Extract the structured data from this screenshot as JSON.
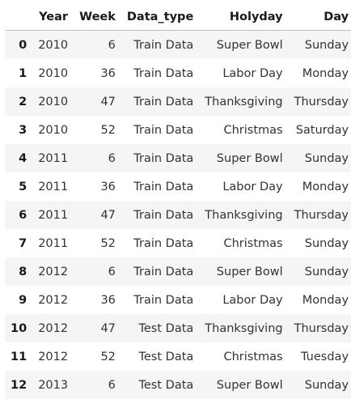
{
  "table": {
    "columns": [
      "",
      "Year",
      "Week",
      "Data_type",
      "Holyday",
      "Day"
    ],
    "rows": [
      {
        "index": "0",
        "Year": "2010",
        "Week": "6",
        "Data_type": "Train Data",
        "Holyday": "Super Bowl",
        "Day": "Sunday"
      },
      {
        "index": "1",
        "Year": "2010",
        "Week": "36",
        "Data_type": "Train Data",
        "Holyday": "Labor Day",
        "Day": "Monday"
      },
      {
        "index": "2",
        "Year": "2010",
        "Week": "47",
        "Data_type": "Train Data",
        "Holyday": "Thanksgiving",
        "Day": "Thursday"
      },
      {
        "index": "3",
        "Year": "2010",
        "Week": "52",
        "Data_type": "Train Data",
        "Holyday": "Christmas",
        "Day": "Saturday"
      },
      {
        "index": "4",
        "Year": "2011",
        "Week": "6",
        "Data_type": "Train Data",
        "Holyday": "Super Bowl",
        "Day": "Sunday"
      },
      {
        "index": "5",
        "Year": "2011",
        "Week": "36",
        "Data_type": "Train Data",
        "Holyday": "Labor Day",
        "Day": "Monday"
      },
      {
        "index": "6",
        "Year": "2011",
        "Week": "47",
        "Data_type": "Train Data",
        "Holyday": "Thanksgiving",
        "Day": "Thursday"
      },
      {
        "index": "7",
        "Year": "2011",
        "Week": "52",
        "Data_type": "Train Data",
        "Holyday": "Christmas",
        "Day": "Sunday"
      },
      {
        "index": "8",
        "Year": "2012",
        "Week": "6",
        "Data_type": "Train Data",
        "Holyday": "Super Bowl",
        "Day": "Sunday"
      },
      {
        "index": "9",
        "Year": "2012",
        "Week": "36",
        "Data_type": "Train Data",
        "Holyday": "Labor Day",
        "Day": "Monday"
      },
      {
        "index": "10",
        "Year": "2012",
        "Week": "47",
        "Data_type": "Test Data",
        "Holyday": "Thanksgiving",
        "Day": "Thursday"
      },
      {
        "index": "11",
        "Year": "2012",
        "Week": "52",
        "Data_type": "Test Data",
        "Holyday": "Christmas",
        "Day": "Tuesday"
      },
      {
        "index": "12",
        "Year": "2013",
        "Week": "6",
        "Data_type": "Test Data",
        "Holyday": "Super Bowl",
        "Day": "Sunday"
      }
    ]
  },
  "colors": {
    "stripe": "#f5f5f5",
    "header_rule": "#bdbdbd"
  }
}
